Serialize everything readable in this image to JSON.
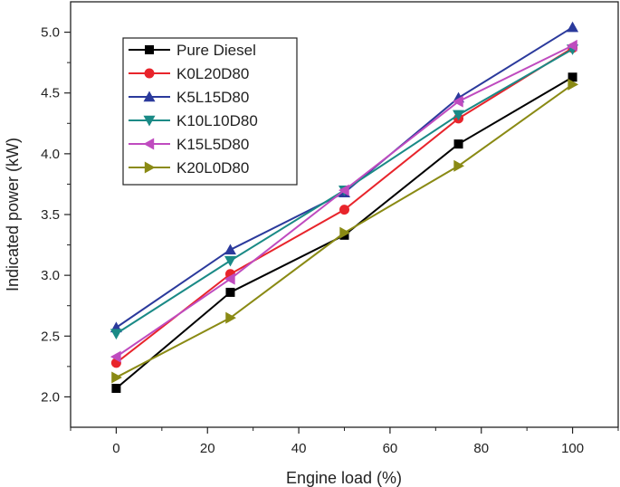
{
  "chart_data": {
    "type": "line",
    "title": "",
    "xlabel": "Engine load (%)",
    "ylabel": "Indicated power (kW)",
    "xlim": [
      -10,
      110
    ],
    "ylim": [
      1.75,
      5.25
    ],
    "x_ticks": [
      0,
      20,
      40,
      60,
      80,
      100
    ],
    "y_ticks": [
      2.0,
      2.5,
      3.0,
      3.5,
      4.0,
      4.5,
      5.0
    ],
    "grid": false,
    "legend_position": "top-left",
    "x": [
      0,
      25,
      50,
      75,
      100
    ],
    "series": [
      {
        "name": "Pure Diesel",
        "color": "#000000",
        "marker": "square",
        "values": [
          2.07,
          2.86,
          3.33,
          4.08,
          4.63
        ]
      },
      {
        "name": "K0L20D80",
        "color": "#e8242b",
        "marker": "circle",
        "values": [
          2.28,
          3.01,
          3.54,
          4.29,
          4.87
        ]
      },
      {
        "name": "K5L15D80",
        "color": "#2b3a9c",
        "marker": "triangle-up",
        "values": [
          2.57,
          3.21,
          3.68,
          4.46,
          5.04
        ]
      },
      {
        "name": "K10L10D80",
        "color": "#1a8a86",
        "marker": "triangle-down",
        "values": [
          2.52,
          3.12,
          3.7,
          4.32,
          4.86
        ]
      },
      {
        "name": "K15L5D80",
        "color": "#bf4bbf",
        "marker": "triangle-left",
        "values": [
          2.33,
          2.97,
          3.7,
          4.43,
          4.89
        ]
      },
      {
        "name": "K20L0D80",
        "color": "#8a8a14",
        "marker": "triangle-right",
        "values": [
          2.16,
          2.65,
          3.35,
          3.9,
          4.57
        ]
      }
    ]
  }
}
